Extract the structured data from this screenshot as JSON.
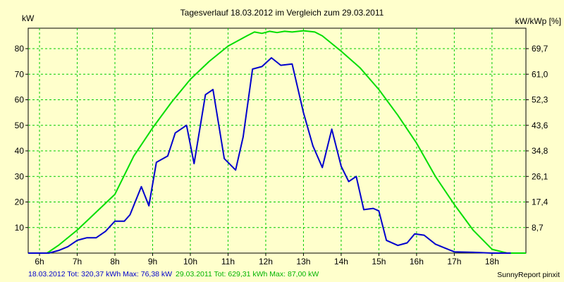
{
  "chart_data": {
    "type": "line",
    "title": "Tagesverlauf 18.03.2012 im Vergleich zum 29.03.2011",
    "ylabel_left": "kW",
    "ylabel_right": "kW/kWp [%]",
    "xlim": [
      5.7,
      18.9
    ],
    "ylim": [
      0,
      88
    ],
    "x_ticks": [
      6,
      7,
      8,
      9,
      10,
      11,
      12,
      13,
      14,
      15,
      16,
      17,
      18
    ],
    "x_tick_labels": [
      "6h",
      "7h",
      "8h",
      "9h",
      "10h",
      "11h",
      "12h",
      "13h",
      "14h",
      "15h",
      "16h",
      "17h",
      "18h"
    ],
    "y_ticks_left": [
      10,
      20,
      30,
      40,
      50,
      60,
      70,
      80
    ],
    "y_ticks_right_labels": [
      "8,7",
      "17,4",
      "26,1",
      "34,8",
      "43,6",
      "52,3",
      "61,0",
      "69,7"
    ],
    "grid": true,
    "series": [
      {
        "name": "18.03.2012",
        "color": "#0000cc",
        "summary": "18.03.2012 Tot: 320,37 kWh Max: 76,38 kW",
        "x": [
          5.7,
          6.25,
          6.5,
          6.75,
          7.0,
          7.25,
          7.5,
          7.75,
          8.0,
          8.25,
          8.4,
          8.7,
          8.9,
          9.1,
          9.4,
          9.6,
          9.9,
          10.1,
          10.4,
          10.6,
          10.9,
          11.2,
          11.4,
          11.65,
          11.9,
          12.15,
          12.4,
          12.7,
          13.0,
          13.25,
          13.5,
          13.75,
          14.0,
          14.2,
          14.4,
          14.6,
          14.85,
          15.0,
          15.2,
          15.5,
          15.75,
          15.95,
          16.2,
          16.5,
          16.75,
          17.0,
          17.5,
          18.0,
          18.5
        ],
        "values": [
          0,
          0,
          1,
          2.5,
          5,
          6,
          6,
          8.5,
          12.5,
          12.5,
          15,
          26,
          18.5,
          35.5,
          38,
          47,
          50,
          35,
          62,
          64,
          37,
          32.5,
          45.5,
          72,
          73,
          76.4,
          73.5,
          74,
          55,
          42,
          33.5,
          48.5,
          34,
          28,
          30,
          17,
          17.5,
          16.5,
          5,
          3,
          4,
          7.5,
          7,
          3.5,
          2,
          0.5,
          0.3,
          0,
          0
        ]
      },
      {
        "name": "29.03.2011",
        "color": "#00dd00",
        "summary": "29.03.2011 Tot: 629,31 kWh Max: 87,00 kW",
        "x": [
          5.7,
          6.2,
          6.5,
          7.0,
          7.5,
          8.0,
          8.5,
          9.0,
          9.5,
          10.0,
          10.5,
          11.0,
          11.5,
          11.7,
          11.9,
          12.1,
          12.3,
          12.5,
          12.7,
          13.0,
          13.3,
          13.5,
          14.0,
          14.5,
          15.0,
          15.5,
          16.0,
          16.5,
          17.0,
          17.5,
          18.0,
          18.4,
          18.9
        ],
        "values": [
          0,
          0,
          3,
          9,
          16,
          23,
          38,
          49,
          59,
          68,
          75,
          81,
          85,
          86.5,
          86,
          86.8,
          86.3,
          86.8,
          86.5,
          87,
          86.5,
          85,
          79,
          72.5,
          64,
          54,
          43,
          30,
          19,
          9,
          1.5,
          0,
          0
        ]
      }
    ]
  },
  "footer": {
    "series1_summary": "18.03.2012 Tot: 320,37 kWh Max: 76,38 kW",
    "series2_summary": "29.03.2011 Tot: 629,31 kWh Max: 87,00 kW",
    "credit": "SunnyReport pinxit"
  }
}
